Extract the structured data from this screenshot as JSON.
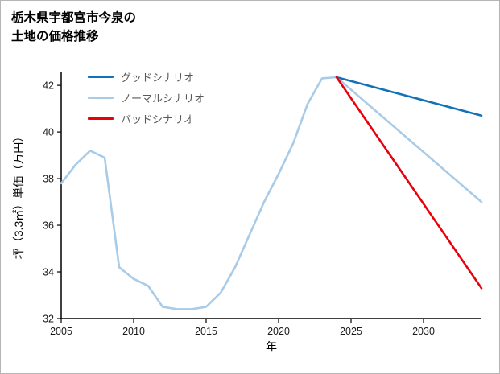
{
  "title": {
    "line1": "栃木県宇都宮市今泉の",
    "line2": "土地の価格推移"
  },
  "chart_data": {
    "type": "line",
    "title": "栃木県宇都宮市今泉の土地の価格推移",
    "xlabel": "年",
    "ylabel": "坪（3.3㎡）単価（万円）",
    "xlim": [
      2005,
      2034
    ],
    "ylim": [
      32,
      42.59
    ],
    "xticks": [
      2005,
      2010,
      2015,
      2020,
      2025,
      2030
    ],
    "yticks": [
      32,
      34,
      36,
      38,
      40,
      42
    ],
    "grid": false,
    "legend_position": "upper-left",
    "axis_color": "#000000",
    "tick_label_color": "#1a1a1a",
    "series": [
      {
        "id": "good",
        "name": "グッドシナリオ",
        "color": "#1171b9",
        "x": [
          2024,
          2034
        ],
        "y": [
          42.35,
          40.7
        ]
      },
      {
        "id": "normal",
        "name": "ノーマルシナリオ",
        "color": "#a8cbe8",
        "x": [
          2005,
          2006,
          2007,
          2008,
          2009,
          2010,
          2011,
          2012,
          2013,
          2014,
          2015,
          2016,
          2017,
          2018,
          2019,
          2020,
          2021,
          2022,
          2023,
          2024,
          2034
        ],
        "y": [
          37.8,
          38.6,
          39.2,
          38.9,
          34.2,
          33.7,
          33.4,
          32.5,
          32.4,
          32.4,
          32.5,
          33.1,
          34.2,
          35.6,
          37.0,
          38.2,
          39.5,
          41.2,
          42.3,
          42.35,
          37.0
        ]
      },
      {
        "id": "bad",
        "name": "バッドシナリオ",
        "color": "#e8000b",
        "x": [
          2024,
          2034
        ],
        "y": [
          42.35,
          33.3
        ]
      }
    ]
  }
}
